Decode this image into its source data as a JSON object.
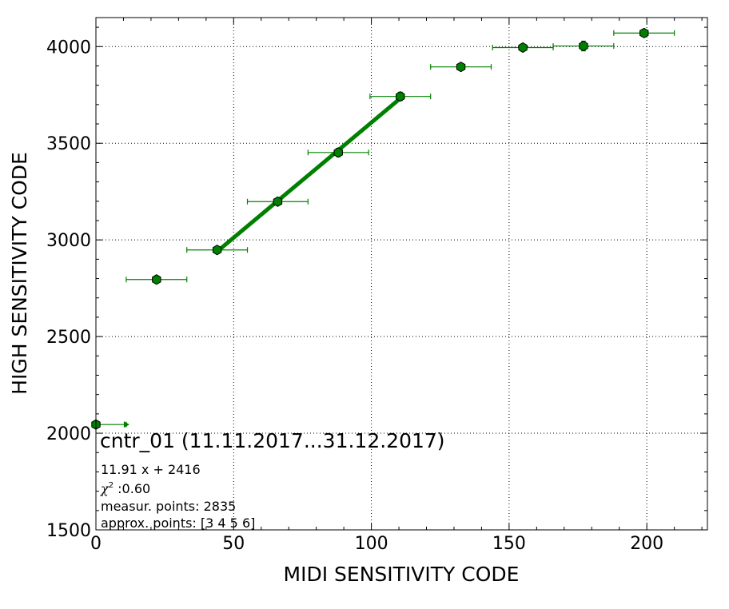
{
  "chart_data": {
    "type": "scatter",
    "xlabel": "MIDI SENSITIVITY CODE",
    "ylabel": "HIGH SENSITIVITY CODE",
    "xlim": [
      0,
      222
    ],
    "ylim": [
      1500,
      4150
    ],
    "xticks": [
      0,
      50,
      100,
      150,
      200
    ],
    "yticks": [
      1500,
      2000,
      2500,
      3000,
      3500,
      4000
    ],
    "xtick_labels": [
      "0",
      "50",
      "100",
      "150",
      "200"
    ],
    "ytick_labels": [
      "1500",
      "2000",
      "2500",
      "3000",
      "3500",
      "4000"
    ],
    "grid": true,
    "grid_style": "dotted",
    "series": [
      {
        "color": "#008000",
        "marker": "hexagon",
        "points": [
          {
            "x": 0,
            "y": 2045,
            "xerr_lo": 0,
            "xerr_hi": 11,
            "yerr": 0
          },
          {
            "x": 22,
            "y": 2795,
            "xerr_lo": 11,
            "xerr_hi": 11,
            "yerr": 0
          },
          {
            "x": 44,
            "y": 2948,
            "xerr_lo": 11,
            "xerr_hi": 11,
            "yerr": 8
          },
          {
            "x": 66,
            "y": 3198,
            "xerr_lo": 11,
            "xerr_hi": 11,
            "yerr": 15
          },
          {
            "x": 88,
            "y": 3452,
            "xerr_lo": 11,
            "xerr_hi": 11,
            "yerr": 22
          },
          {
            "x": 110.5,
            "y": 3742,
            "xerr_lo": 11,
            "xerr_hi": 11,
            "yerr": 22
          },
          {
            "x": 132.5,
            "y": 3895,
            "xerr_lo": 11,
            "xerr_hi": 11,
            "yerr": 15
          },
          {
            "x": 155,
            "y": 3995,
            "xerr_lo": 11,
            "xerr_hi": 11,
            "yerr": 12
          },
          {
            "x": 177,
            "y": 4003,
            "xerr_lo": 11,
            "xerr_hi": 11,
            "yerr": 25
          },
          {
            "x": 199,
            "y": 4070,
            "xerr_lo": 11,
            "xerr_hi": 11,
            "yerr": 10
          }
        ]
      }
    ],
    "fit": {
      "color": "#008000",
      "slope": 11.91,
      "intercept": 2416,
      "x_range": [
        44,
        110.5
      ]
    },
    "annotation": {
      "title": "cntr_01 (11.11.2017...31.12.2017)",
      "equation": "11.91 x + 2416",
      "chi_symbol": "χ",
      "chi_sup": "2",
      "chi_value": " :0.60",
      "measur_points": "measur. points: 2835",
      "approx_points": "approx. points: [3 4 5 6]"
    }
  }
}
